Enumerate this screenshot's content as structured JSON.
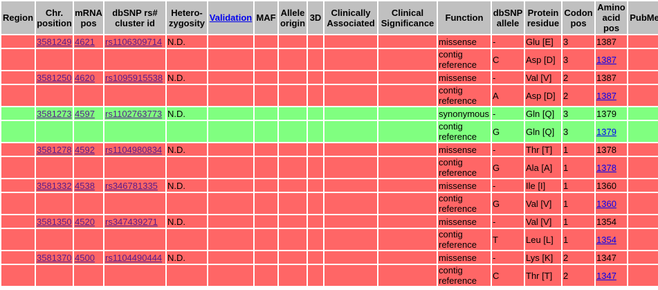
{
  "headers": {
    "region": "Region",
    "chr_position": "Chr. position",
    "mrna_pos": "mRNA pos",
    "dbsnp_id": "dbSNP rs# cluster id",
    "heterozygosity": "Hetero- zygosity",
    "validation": "Validation",
    "maf": "MAF",
    "allele_origin": "Allele origin",
    "three_d": "3D",
    "clinically_associated": "Clinically Associated",
    "clinical_significance": "Clinical Significance",
    "function": "Function",
    "dbsnp_allele": "dbSNP allele",
    "protein_residue": "Protein residue",
    "codon_pos": "Codon pos",
    "amino_acid_pos": "Amino acid pos",
    "pubmed": "PubMed"
  },
  "colors": {
    "missense": "#ff6666",
    "synonymous": "#80ff80",
    "header": "#c0c0c0"
  },
  "groups": [
    {
      "color": "red",
      "chr": "3581249",
      "mrna": "4621",
      "rs": "rs1106309714",
      "het": "N.D.",
      "rows": [
        {
          "function": "missense",
          "allele": "-",
          "residue": "Glu [E]",
          "codon": "3",
          "aapos": "1387",
          "aalink": false
        },
        {
          "function": "contig reference",
          "allele": "C",
          "residue": "Asp [D]",
          "codon": "3",
          "aapos": "1387",
          "aalink": true
        }
      ]
    },
    {
      "color": "red",
      "chr": "3581250",
      "mrna": "4620",
      "rs": "rs1095915538",
      "het": "N.D.",
      "rows": [
        {
          "function": "missense",
          "allele": "-",
          "residue": "Val [V]",
          "codon": "2",
          "aapos": "1387",
          "aalink": false
        },
        {
          "function": "contig reference",
          "allele": "A",
          "residue": "Asp [D]",
          "codon": "2",
          "aapos": "1387",
          "aalink": true
        }
      ]
    },
    {
      "color": "green",
      "chr": "3581273",
      "mrna": "4597",
      "rs": "rs1102763773",
      "het": "N.D.",
      "rows": [
        {
          "function": "synonymous",
          "allele": "-",
          "residue": "Gln [Q]",
          "codon": "3",
          "aapos": "1379",
          "aalink": false
        },
        {
          "function": "contig reference",
          "allele": "G",
          "residue": "Gln [Q]",
          "codon": "3",
          "aapos": "1379",
          "aalink": true
        }
      ]
    },
    {
      "color": "red",
      "chr": "3581278",
      "mrna": "4592",
      "rs": "rs1104980834",
      "het": "N.D.",
      "rows": [
        {
          "function": "missense",
          "allele": "-",
          "residue": "Thr [T]",
          "codon": "1",
          "aapos": "1378",
          "aalink": false
        },
        {
          "function": "contig reference",
          "allele": "G",
          "residue": "Ala [A]",
          "codon": "1",
          "aapos": "1378",
          "aalink": true
        }
      ]
    },
    {
      "color": "red",
      "chr": "3581332",
      "mrna": "4538",
      "rs": "rs346781335",
      "het": "N.D.",
      "rows": [
        {
          "function": "missense",
          "allele": "-",
          "residue": "Ile [I]",
          "codon": "1",
          "aapos": "1360",
          "aalink": false
        },
        {
          "function": "contig reference",
          "allele": "G",
          "residue": "Val [V]",
          "codon": "1",
          "aapos": "1360",
          "aalink": true
        }
      ]
    },
    {
      "color": "red",
      "chr": "3581350",
      "mrna": "4520",
      "rs": "rs347439271",
      "het": "N.D.",
      "rows": [
        {
          "function": "missense",
          "allele": "-",
          "residue": "Val [V]",
          "codon": "1",
          "aapos": "1354",
          "aalink": false
        },
        {
          "function": "contig reference",
          "allele": "T",
          "residue": "Leu [L]",
          "codon": "1",
          "aapos": "1354",
          "aalink": true
        }
      ]
    },
    {
      "color": "red",
      "chr": "3581370",
      "mrna": "4500",
      "rs": "rs1104490444",
      "het": "N.D.",
      "rows": [
        {
          "function": "missense",
          "allele": "-",
          "residue": "Lys [K]",
          "codon": "2",
          "aapos": "1347",
          "aalink": false
        },
        {
          "function": "contig reference",
          "allele": "C",
          "residue": "Thr [T]",
          "codon": "2",
          "aapos": "1347",
          "aalink": true
        }
      ]
    }
  ]
}
